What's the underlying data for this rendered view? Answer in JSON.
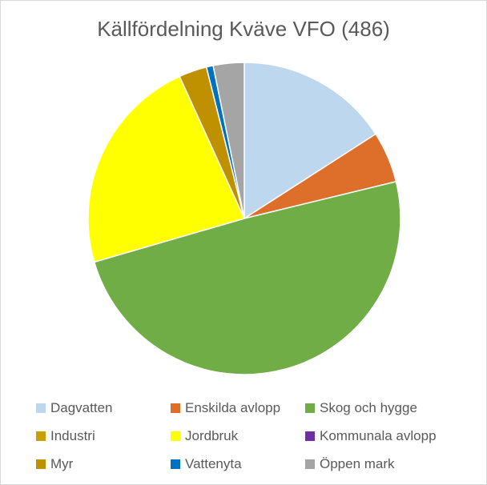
{
  "chart_data": {
    "type": "pie",
    "title": "Källfördelning Kväve VFO (486)",
    "slices": [
      {
        "name": "Dagvatten",
        "value": 15.9,
        "color": "#bdd7ee"
      },
      {
        "name": "Enskilda avlopp",
        "value": 5.3,
        "color": "#dd6f2a"
      },
      {
        "name": "Skog och hygge",
        "value": 49.3,
        "color": "#70ad47"
      },
      {
        "name": "Industri",
        "value": 0.0,
        "color": "#c9a000"
      },
      {
        "name": "Jordbruk",
        "value": 22.7,
        "color": "#ffff00"
      },
      {
        "name": "Kommunala avlopp",
        "value": 0.0,
        "color": "#7030a0"
      },
      {
        "name": "Myr",
        "value": 2.9,
        "color": "#bf9000"
      },
      {
        "name": "Vattenyta",
        "value": 0.7,
        "color": "#0070c0"
      },
      {
        "name": "Öppen mark",
        "value": 3.2,
        "color": "#a5a5a5"
      }
    ],
    "legend_position": "bottom"
  }
}
